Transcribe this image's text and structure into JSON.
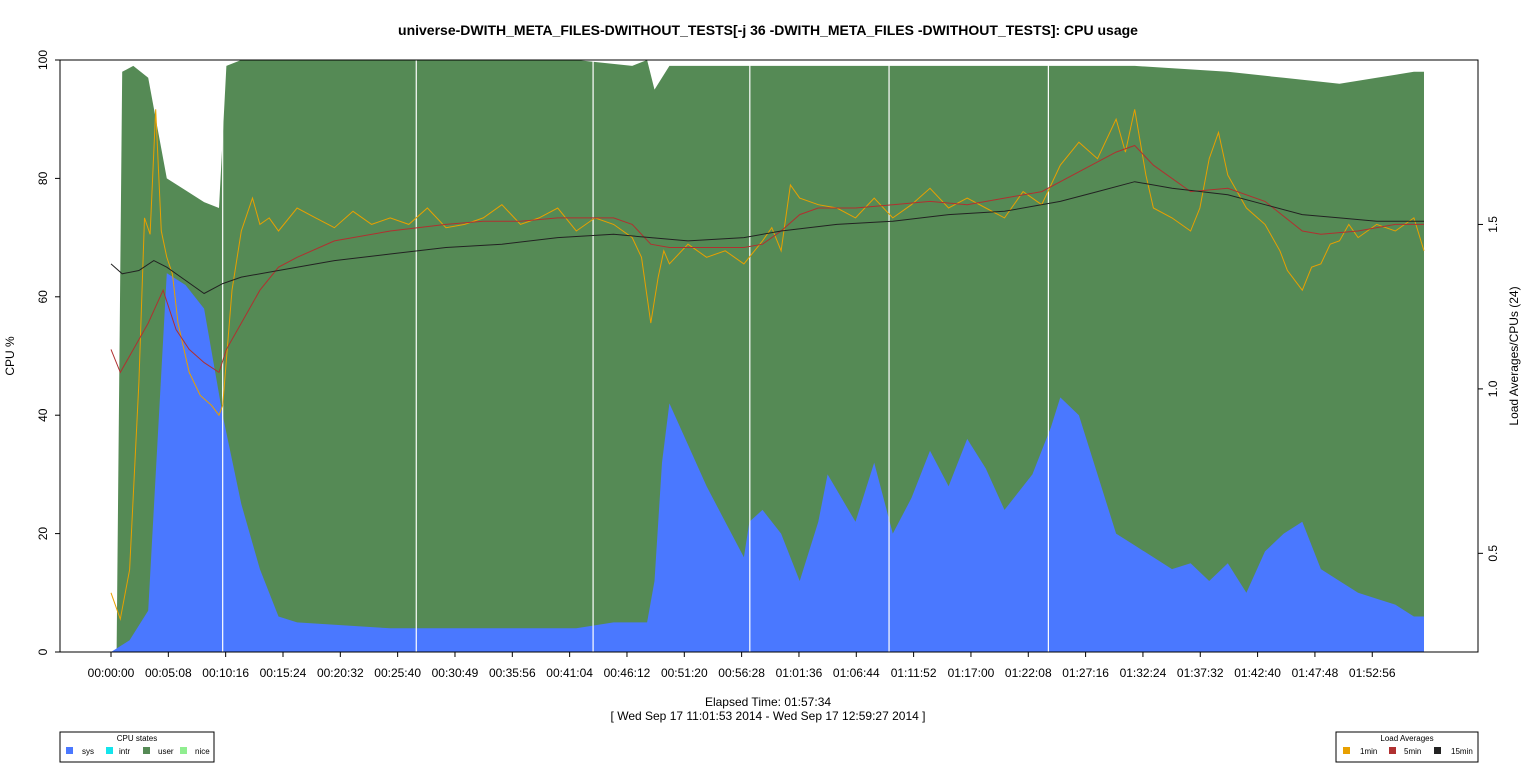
{
  "chart_data": {
    "type": "area",
    "title": "universe-DWITH_META_FILES-DWITHOUT_TESTS[-j 36 -DWITH_META_FILES -DWITHOUT_TESTS]: CPU usage",
    "xlabel": "Elapsed Time: 01:57:34",
    "xlabel_range": "[ Wed Sep 17 11:01:53 2014 - Wed Sep 17 12:59:27 2014 ]",
    "ylabel": "CPU %",
    "ylabel_right": "Load Averages/CPUs (24)",
    "ylim": [
      0,
      100
    ],
    "ylim_right": [
      0.2,
      2.0
    ],
    "yticks": [
      0,
      20,
      40,
      60,
      80,
      100
    ],
    "yticks_right": [
      0.5,
      1.0,
      1.5
    ],
    "xlim_seconds": [
      0,
      7054
    ],
    "xticks": [
      "00:00:00",
      "00:05:08",
      "00:10:16",
      "00:15:24",
      "00:20:32",
      "00:25:40",
      "00:30:49",
      "00:35:56",
      "00:41:04",
      "00:46:12",
      "00:51:20",
      "00:56:28",
      "01:01:36",
      "01:06:44",
      "01:11:52",
      "01:17:00",
      "01:22:08",
      "01:27:16",
      "01:32:24",
      "01:37:32",
      "01:42:40",
      "01:47:48",
      "01:52:56"
    ],
    "vertical_markers_seconds": [
      600,
      1640,
      2590,
      3432,
      4180,
      5036
    ],
    "grid": false,
    "colors": {
      "sys": "#4a78ff",
      "intr": "#14e4ec",
      "user": "#558a55",
      "nice": "#90ee90",
      "load_1min": "#e8a000",
      "load_5min": "#b03030",
      "load_15min": "#222222"
    },
    "cpu_series": [
      {
        "name": "sys",
        "points": [
          [
            0,
            0
          ],
          [
            100,
            2
          ],
          [
            200,
            7
          ],
          [
            300,
            64
          ],
          [
            400,
            62
          ],
          [
            500,
            58
          ],
          [
            600,
            40
          ],
          [
            700,
            25
          ],
          [
            800,
            14
          ],
          [
            900,
            6
          ],
          [
            1000,
            5
          ],
          [
            1500,
            4
          ],
          [
            2000,
            4
          ],
          [
            2500,
            4
          ],
          [
            2700,
            5
          ],
          [
            2880,
            5
          ],
          [
            2920,
            12
          ],
          [
            2960,
            32
          ],
          [
            3000,
            42
          ],
          [
            3100,
            35
          ],
          [
            3200,
            28
          ],
          [
            3300,
            22
          ],
          [
            3400,
            16
          ],
          [
            3430,
            22
          ],
          [
            3500,
            24
          ],
          [
            3600,
            20
          ],
          [
            3700,
            12
          ],
          [
            3800,
            22
          ],
          [
            3850,
            30
          ],
          [
            4000,
            22
          ],
          [
            4100,
            32
          ],
          [
            4200,
            20
          ],
          [
            4300,
            26
          ],
          [
            4400,
            34
          ],
          [
            4500,
            28
          ],
          [
            4600,
            36
          ],
          [
            4700,
            31
          ],
          [
            4800,
            24
          ],
          [
            4950,
            30
          ],
          [
            5050,
            38
          ],
          [
            5100,
            43
          ],
          [
            5200,
            40
          ],
          [
            5300,
            30
          ],
          [
            5400,
            20
          ],
          [
            5500,
            18
          ],
          [
            5600,
            16
          ],
          [
            5700,
            14
          ],
          [
            5800,
            15
          ],
          [
            5900,
            12
          ],
          [
            6000,
            15
          ],
          [
            6100,
            10
          ],
          [
            6200,
            17
          ],
          [
            6300,
            20
          ],
          [
            6400,
            22
          ],
          [
            6500,
            14
          ],
          [
            6600,
            12
          ],
          [
            6700,
            10
          ],
          [
            6800,
            9
          ],
          [
            6900,
            8
          ],
          [
            7000,
            6
          ],
          [
            7054,
            6
          ]
        ]
      },
      {
        "name": "user",
        "points": [
          [
            0,
            0
          ],
          [
            30,
            0
          ],
          [
            60,
            98
          ],
          [
            120,
            99
          ],
          [
            200,
            97
          ],
          [
            300,
            80
          ],
          [
            400,
            78
          ],
          [
            500,
            76
          ],
          [
            580,
            75
          ],
          [
            620,
            99
          ],
          [
            700,
            100
          ],
          [
            1000,
            100
          ],
          [
            1500,
            100
          ],
          [
            2000,
            100
          ],
          [
            2500,
            100
          ],
          [
            2800,
            99
          ],
          [
            2880,
            100
          ],
          [
            2920,
            95
          ],
          [
            3000,
            99
          ],
          [
            3500,
            99
          ],
          [
            4000,
            99
          ],
          [
            4500,
            99
          ],
          [
            5000,
            99
          ],
          [
            5500,
            99
          ],
          [
            6000,
            98
          ],
          [
            6300,
            97
          ],
          [
            6600,
            96
          ],
          [
            6800,
            97
          ],
          [
            7000,
            98
          ],
          [
            7054,
            98
          ]
        ]
      }
    ],
    "load_series": [
      {
        "name": "1min",
        "points": [
          [
            0,
            0.38
          ],
          [
            50,
            0.3
          ],
          [
            100,
            0.45
          ],
          [
            150,
            1.02
          ],
          [
            180,
            1.52
          ],
          [
            210,
            1.47
          ],
          [
            240,
            1.85
          ],
          [
            270,
            1.48
          ],
          [
            300,
            1.4
          ],
          [
            330,
            1.35
          ],
          [
            360,
            1.2
          ],
          [
            420,
            1.05
          ],
          [
            480,
            0.98
          ],
          [
            540,
            0.95
          ],
          [
            580,
            0.92
          ],
          [
            600,
            0.95
          ],
          [
            650,
            1.3
          ],
          [
            700,
            1.48
          ],
          [
            760,
            1.58
          ],
          [
            800,
            1.5
          ],
          [
            850,
            1.52
          ],
          [
            900,
            1.48
          ],
          [
            1000,
            1.55
          ],
          [
            1100,
            1.52
          ],
          [
            1200,
            1.49
          ],
          [
            1300,
            1.54
          ],
          [
            1400,
            1.5
          ],
          [
            1500,
            1.52
          ],
          [
            1600,
            1.5
          ],
          [
            1700,
            1.55
          ],
          [
            1800,
            1.49
          ],
          [
            1900,
            1.5
          ],
          [
            2000,
            1.52
          ],
          [
            2100,
            1.56
          ],
          [
            2200,
            1.5
          ],
          [
            2300,
            1.52
          ],
          [
            2400,
            1.55
          ],
          [
            2500,
            1.48
          ],
          [
            2600,
            1.52
          ],
          [
            2700,
            1.5
          ],
          [
            2800,
            1.46
          ],
          [
            2850,
            1.4
          ],
          [
            2900,
            1.2
          ],
          [
            2940,
            1.34
          ],
          [
            2970,
            1.42
          ],
          [
            3000,
            1.38
          ],
          [
            3100,
            1.44
          ],
          [
            3200,
            1.4
          ],
          [
            3300,
            1.42
          ],
          [
            3400,
            1.38
          ],
          [
            3500,
            1.45
          ],
          [
            3550,
            1.49
          ],
          [
            3600,
            1.42
          ],
          [
            3650,
            1.62
          ],
          [
            3700,
            1.58
          ],
          [
            3800,
            1.56
          ],
          [
            3900,
            1.55
          ],
          [
            4000,
            1.52
          ],
          [
            4100,
            1.58
          ],
          [
            4200,
            1.52
          ],
          [
            4300,
            1.56
          ],
          [
            4400,
            1.61
          ],
          [
            4500,
            1.55
          ],
          [
            4600,
            1.58
          ],
          [
            4700,
            1.55
          ],
          [
            4800,
            1.52
          ],
          [
            4900,
            1.6
          ],
          [
            5000,
            1.56
          ],
          [
            5100,
            1.68
          ],
          [
            5200,
            1.75
          ],
          [
            5300,
            1.7
          ],
          [
            5400,
            1.82
          ],
          [
            5450,
            1.72
          ],
          [
            5500,
            1.85
          ],
          [
            5560,
            1.65
          ],
          [
            5600,
            1.55
          ],
          [
            5700,
            1.52
          ],
          [
            5800,
            1.48
          ],
          [
            5850,
            1.55
          ],
          [
            5900,
            1.7
          ],
          [
            5950,
            1.78
          ],
          [
            6000,
            1.65
          ],
          [
            6100,
            1.55
          ],
          [
            6200,
            1.5
          ],
          [
            6280,
            1.42
          ],
          [
            6320,
            1.36
          ],
          [
            6400,
            1.3
          ],
          [
            6450,
            1.37
          ],
          [
            6500,
            1.38
          ],
          [
            6550,
            1.44
          ],
          [
            6600,
            1.45
          ],
          [
            6650,
            1.5
          ],
          [
            6700,
            1.46
          ],
          [
            6800,
            1.5
          ],
          [
            6900,
            1.48
          ],
          [
            7000,
            1.52
          ],
          [
            7054,
            1.42
          ]
        ]
      },
      {
        "name": "5min",
        "points": [
          [
            0,
            1.12
          ],
          [
            50,
            1.05
          ],
          [
            100,
            1.1
          ],
          [
            200,
            1.2
          ],
          [
            280,
            1.3
          ],
          [
            350,
            1.18
          ],
          [
            420,
            1.12
          ],
          [
            500,
            1.08
          ],
          [
            580,
            1.05
          ],
          [
            620,
            1.12
          ],
          [
            700,
            1.2
          ],
          [
            800,
            1.3
          ],
          [
            900,
            1.37
          ],
          [
            1000,
            1.4
          ],
          [
            1200,
            1.45
          ],
          [
            1500,
            1.48
          ],
          [
            1800,
            1.5
          ],
          [
            2000,
            1.51
          ],
          [
            2200,
            1.51
          ],
          [
            2400,
            1.52
          ],
          [
            2700,
            1.52
          ],
          [
            2800,
            1.5
          ],
          [
            2900,
            1.44
          ],
          [
            3000,
            1.43
          ],
          [
            3200,
            1.43
          ],
          [
            3400,
            1.43
          ],
          [
            3500,
            1.44
          ],
          [
            3600,
            1.48
          ],
          [
            3700,
            1.53
          ],
          [
            3800,
            1.55
          ],
          [
            4000,
            1.55
          ],
          [
            4200,
            1.56
          ],
          [
            4400,
            1.57
          ],
          [
            4600,
            1.56
          ],
          [
            4800,
            1.58
          ],
          [
            5000,
            1.6
          ],
          [
            5200,
            1.66
          ],
          [
            5400,
            1.72
          ],
          [
            5500,
            1.74
          ],
          [
            5600,
            1.68
          ],
          [
            5800,
            1.6
          ],
          [
            6000,
            1.61
          ],
          [
            6200,
            1.57
          ],
          [
            6400,
            1.48
          ],
          [
            6500,
            1.47
          ],
          [
            6700,
            1.48
          ],
          [
            6900,
            1.5
          ],
          [
            7054,
            1.5
          ]
        ]
      },
      {
        "name": "15min",
        "points": [
          [
            0,
            1.38
          ],
          [
            60,
            1.35
          ],
          [
            150,
            1.36
          ],
          [
            230,
            1.39
          ],
          [
            300,
            1.37
          ],
          [
            400,
            1.33
          ],
          [
            500,
            1.29
          ],
          [
            600,
            1.32
          ],
          [
            700,
            1.34
          ],
          [
            900,
            1.36
          ],
          [
            1200,
            1.39
          ],
          [
            1500,
            1.41
          ],
          [
            1800,
            1.43
          ],
          [
            2100,
            1.44
          ],
          [
            2400,
            1.46
          ],
          [
            2700,
            1.47
          ],
          [
            2900,
            1.46
          ],
          [
            3100,
            1.45
          ],
          [
            3400,
            1.46
          ],
          [
            3600,
            1.48
          ],
          [
            3900,
            1.5
          ],
          [
            4200,
            1.51
          ],
          [
            4500,
            1.53
          ],
          [
            4800,
            1.54
          ],
          [
            5100,
            1.57
          ],
          [
            5300,
            1.6
          ],
          [
            5500,
            1.63
          ],
          [
            5700,
            1.61
          ],
          [
            6000,
            1.59
          ],
          [
            6200,
            1.56
          ],
          [
            6400,
            1.53
          ],
          [
            6600,
            1.52
          ],
          [
            6800,
            1.51
          ],
          [
            7054,
            1.51
          ]
        ]
      }
    ]
  },
  "legend_cpu": {
    "title": "CPU states",
    "items": [
      "sys",
      "intr",
      "user",
      "nice"
    ]
  },
  "legend_load": {
    "title": "Load Averages",
    "items": [
      "1min",
      "5min",
      "15min"
    ]
  }
}
